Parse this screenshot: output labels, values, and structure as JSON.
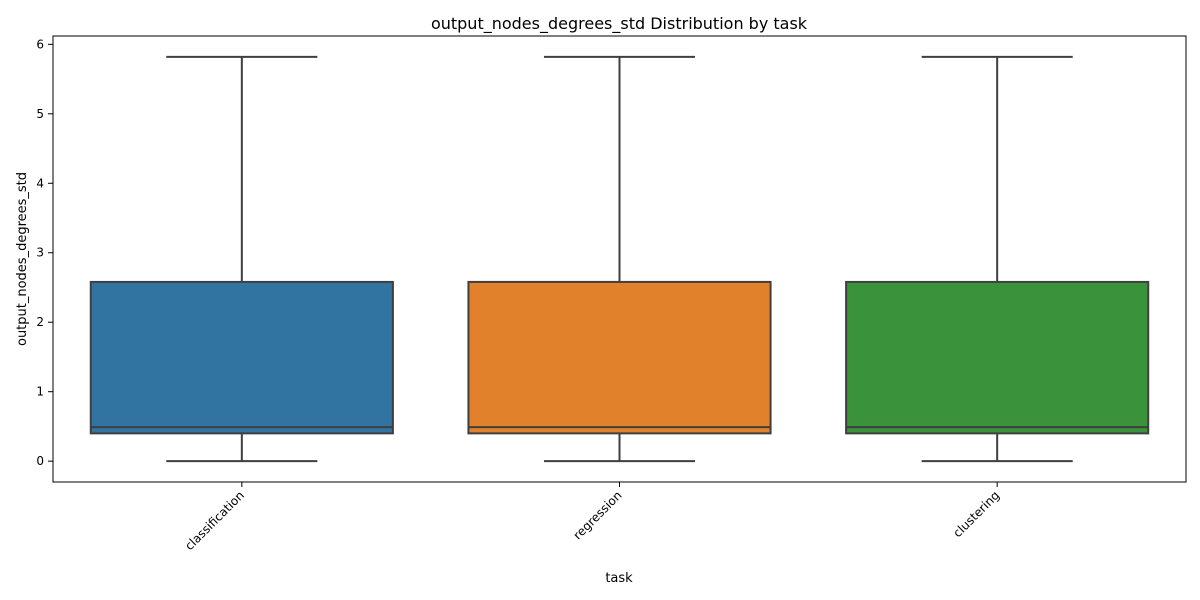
{
  "chart_data": {
    "type": "box",
    "title": "output_nodes_degrees_std Distribution by task",
    "xlabel": "task",
    "ylabel": "output_nodes_degrees_std",
    "categories": [
      "classification",
      "regression",
      "clustering"
    ],
    "ylim": [
      -0.3,
      6.12
    ],
    "yticks": [
      0,
      1,
      2,
      3,
      4,
      5,
      6
    ],
    "grid": false,
    "boxes": [
      {
        "category": "classification",
        "whisker_low": 0.0,
        "q1": 0.4,
        "median": 0.49,
        "q3": 2.58,
        "whisker_high": 5.82,
        "color": "#3274a1"
      },
      {
        "category": "regression",
        "whisker_low": 0.0,
        "q1": 0.4,
        "median": 0.49,
        "q3": 2.58,
        "whisker_high": 5.82,
        "color": "#e1812c"
      },
      {
        "category": "clustering",
        "whisker_low": 0.0,
        "q1": 0.4,
        "median": 0.49,
        "q3": 2.58,
        "whisker_high": 5.82,
        "color": "#3a923a"
      }
    ]
  }
}
